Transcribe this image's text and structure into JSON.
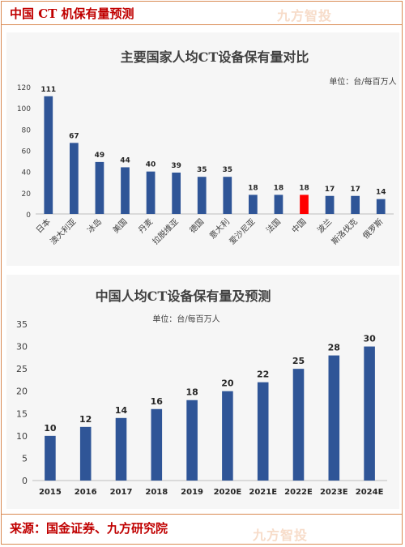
{
  "header": {
    "title": "中国 CT 机保有量预测"
  },
  "watermark": {
    "top": "九方智投",
    "bottom": "九方智投"
  },
  "footer": {
    "source": "来源：国金证券、九方研究院"
  },
  "colors": {
    "bar": "#2f5597",
    "highlight": "#ff0000",
    "accent": "#c00000",
    "border": "#d98a52"
  },
  "chart_data": [
    {
      "type": "bar",
      "title": "主要国家人均CT设备保有量对比",
      "unit_note": "单位：台/每百万人",
      "categories": [
        "日本",
        "澳大利亚",
        "冰岛",
        "美国",
        "丹麦",
        "拉脱维亚",
        "德国",
        "意大利",
        "爱沙尼亚",
        "法国",
        "中国",
        "波兰",
        "斯洛伐克",
        "俄罗斯"
      ],
      "values": [
        111,
        67,
        49,
        44,
        40,
        39,
        35,
        35,
        18,
        18,
        18,
        17,
        17,
        14
      ],
      "highlight_category": "中国",
      "ylim": [
        0,
        120
      ],
      "yticks": [
        0,
        20,
        40,
        60,
        80,
        100,
        120
      ],
      "grid": false
    },
    {
      "type": "bar",
      "title": "中国人均CT设备保有量及预测",
      "unit_note": "单位：台/每百万人",
      "categories": [
        "2015",
        "2016",
        "2017",
        "2018",
        "2019",
        "2020E",
        "2021E",
        "2022E",
        "2023E",
        "2024E"
      ],
      "values": [
        10,
        12,
        14,
        16,
        18,
        20,
        22,
        25,
        28,
        30
      ],
      "ylim": [
        0,
        35
      ],
      "yticks": [
        0,
        5,
        10,
        15,
        20,
        25,
        30,
        35
      ],
      "grid": false
    }
  ]
}
